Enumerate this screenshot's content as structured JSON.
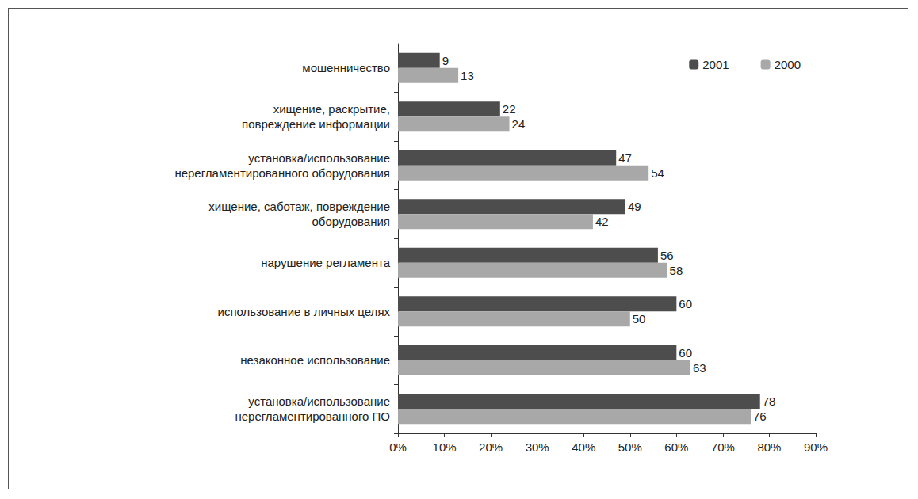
{
  "chart_data": {
    "type": "bar",
    "orientation": "horizontal",
    "categories": [
      "мошенничество",
      "хищение, раскрытие,\nповреждение информации",
      "установка/использование\nнерегламентированного оборудования",
      "хищение, саботаж, повреждение\nоборудования",
      "нарушение регламента",
      "использование в личных целях",
      "незаконное использование",
      "установка/использование\nнерегламентированного ПО"
    ],
    "series": [
      {
        "name": "2001",
        "color": "#4d4d4d",
        "values": [
          9,
          22,
          47,
          49,
          56,
          60,
          60,
          78
        ]
      },
      {
        "name": "2000",
        "color": "#a8a8a8",
        "values": [
          13,
          24,
          54,
          42,
          58,
          50,
          63,
          76
        ]
      }
    ],
    "xlim": [
      0,
      90
    ],
    "xticks": [
      {
        "value": 0,
        "label": "0%"
      },
      {
        "value": 10,
        "label": "10%"
      },
      {
        "value": 20,
        "label": "20%"
      },
      {
        "value": 30,
        "label": "30%"
      },
      {
        "value": 40,
        "label": "40%"
      },
      {
        "value": 50,
        "label": "50%"
      },
      {
        "value": 60,
        "label": "60%"
      },
      {
        "value": 70,
        "label": "70%"
      },
      {
        "value": 80,
        "label": "80%"
      },
      {
        "value": 90,
        "label": "90%"
      }
    ],
    "grid": false,
    "legend": "top-right",
    "data_labels": true
  }
}
